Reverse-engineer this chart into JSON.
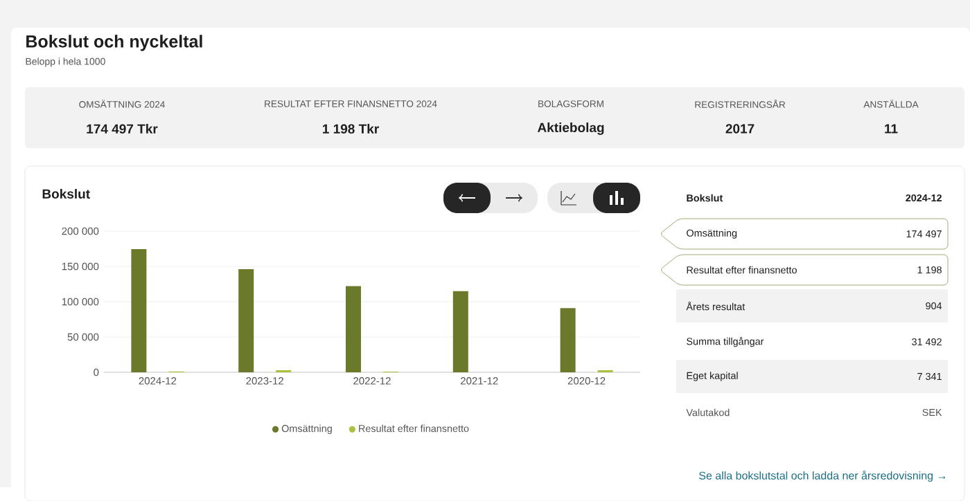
{
  "chart_data": [
    {
      "type": "other",
      "title": "Bokslut och nyckeltal",
      "subtitle": "Belopp i hela 1000",
      "annotations": [
        "OMSÄTTNING 2024",
        "174 497 Tkr",
        "RESULTAT EFTER FINANSNETTO 2024",
        "1 198 Tkr",
        "BOLAGSFORM",
        "Aktiebolag",
        "REGISTRERINGSÅR",
        "2017",
        "ANSTÄLLDA",
        "11"
      ]
    },
    {
      "type": "bar",
      "title": "Bokslut",
      "categories": [
        "2024-12",
        "2023-12",
        "2022-12",
        "2021-12",
        "2020-12"
      ],
      "series": [
        {
          "name": "Omsättning",
          "color": "#6b7a2a",
          "values": [
            174497,
            146000,
            122000,
            115000,
            91000
          ]
        },
        {
          "name": "Resultat efter finansnetto",
          "color": "#a9c23f",
          "values": [
            1198,
            3000,
            1000,
            null,
            3000
          ]
        }
      ],
      "ylim": [
        0,
        200000
      ],
      "yticks": [
        0,
        {
          "value": 50000,
          "label": "50 000"
        },
        {
          "value": 100000,
          "label": "100 000"
        },
        {
          "value": 150000,
          "label": "150 000"
        },
        {
          "value": 200000,
          "label": "200 000"
        }
      ],
      "grid": "y",
      "legend": "bottom"
    },
    {
      "type": "other",
      "annotations": [
        "Bokslut",
        "2024-12",
        "Omsättning",
        "174 497",
        "Resultat efter finansnetto",
        "1 198",
        "Årets resultat",
        "904",
        "Summa tillgångar",
        "31 492",
        "Eget kapital",
        "7 341",
        "Valutakod",
        "SEK",
        "Se alla bokslutstal och ladda ner årsredovisning →"
      ]
    }
  ]
}
